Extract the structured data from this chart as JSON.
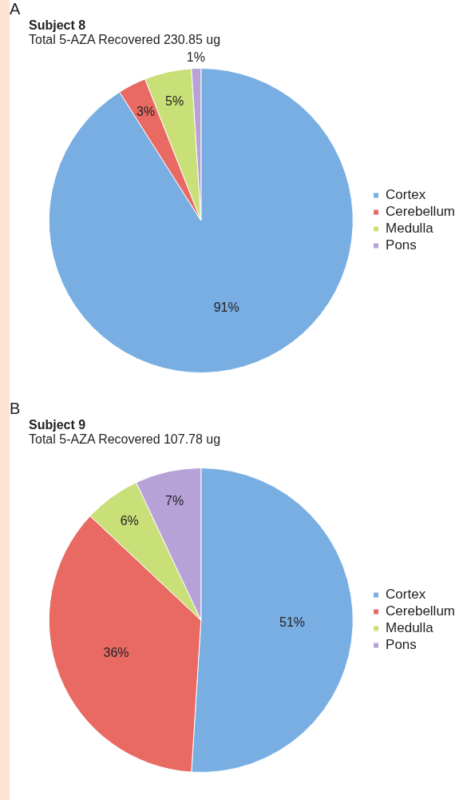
{
  "chart_data": [
    {
      "type": "pie",
      "annotations": [
        "A"
      ],
      "title": "Subject 8",
      "subtitle": "Total 5-AZA Recovered 230.85 ug",
      "categories": [
        "Cortex",
        "Cerebellum",
        "Medulla",
        "Pons"
      ],
      "values": [
        91,
        3,
        5,
        1
      ],
      "value_labels": [
        "91%",
        "3%",
        "5%",
        "1%"
      ],
      "colors": [
        "#79aee2",
        "#e86a63",
        "#c9df78",
        "#b7a2d8"
      ],
      "legend": "right"
    },
    {
      "type": "pie",
      "annotations": [
        "B"
      ],
      "title": "Subject 9",
      "subtitle": "Total 5-AZA Recovered 107.78 ug",
      "categories": [
        "Cortex",
        "Cerebellum",
        "Medulla",
        "Pons"
      ],
      "values": [
        51,
        36,
        6,
        7
      ],
      "value_labels": [
        "51%",
        "36%",
        "6%",
        "7%"
      ],
      "colors": [
        "#79aee2",
        "#e86a63",
        "#c9df78",
        "#b7a2d8"
      ],
      "legend": "right"
    }
  ]
}
